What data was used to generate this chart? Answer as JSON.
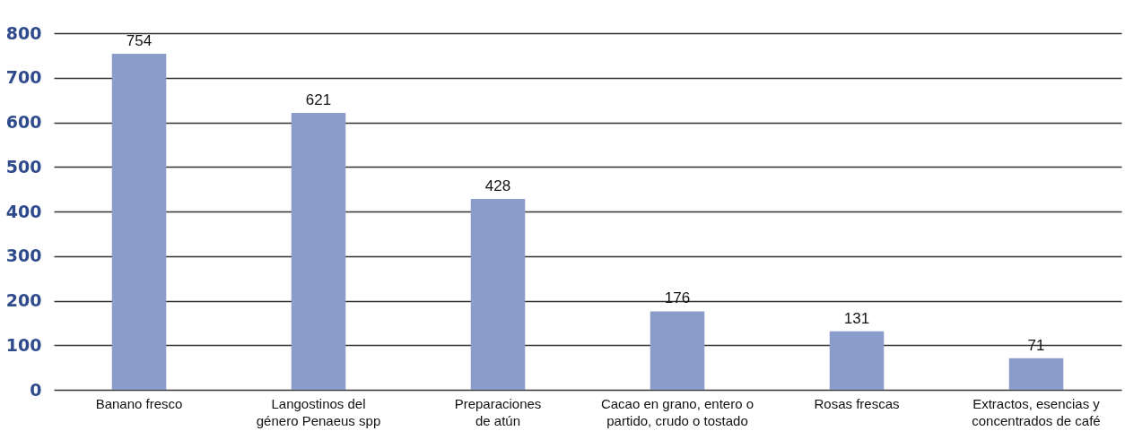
{
  "chart_data": {
    "type": "bar",
    "categories": [
      "Banano fresco",
      "Langostinos del género Penaeus spp",
      "Preparaciones de atún",
      "Cacao en grano, entero o partido, crudo o tostado",
      "Rosas frescas",
      "Extractos, esencias y concentrados de café"
    ],
    "values": [
      754,
      621,
      428,
      176,
      131,
      71
    ],
    "color": "#8a9cc9",
    "ylim": [
      0,
      800
    ],
    "yticks": [
      0,
      100,
      200,
      300,
      400,
      500,
      600,
      700,
      800
    ],
    "grid": "y",
    "data_labels": true
  }
}
